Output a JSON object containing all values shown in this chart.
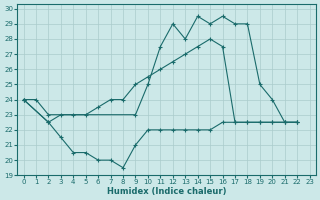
{
  "bg_color": "#cce8e8",
  "grid_color": "#aacccc",
  "line_color": "#1a6b6b",
  "xlabel": "Humidex (Indice chaleur)",
  "xlim": [
    -0.5,
    23.5
  ],
  "ylim": [
    19,
    30.3
  ],
  "yticks": [
    19,
    20,
    21,
    22,
    23,
    24,
    25,
    26,
    27,
    28,
    29,
    30
  ],
  "xticks": [
    0,
    1,
    2,
    3,
    4,
    5,
    6,
    7,
    8,
    9,
    10,
    11,
    12,
    13,
    14,
    15,
    16,
    17,
    18,
    19,
    20,
    21,
    22,
    23
  ],
  "s1_x": [
    0,
    1,
    2,
    9,
    10,
    11,
    12,
    13,
    14,
    15,
    16,
    17,
    18,
    19,
    20,
    21,
    22
  ],
  "s1_y": [
    24.0,
    24.0,
    23.0,
    23.0,
    25.0,
    27.5,
    29.0,
    28.0,
    29.5,
    29.0,
    29.5,
    29.0,
    29.0,
    25.0,
    24.0,
    22.5,
    22.5
  ],
  "s2_x": [
    0,
    2,
    3,
    4,
    5,
    6,
    7,
    8,
    9,
    10,
    11,
    12,
    13,
    14,
    15,
    16,
    17,
    18,
    19,
    20,
    21,
    22
  ],
  "s2_y": [
    24.0,
    22.5,
    23.0,
    23.0,
    23.0,
    23.5,
    24.0,
    24.0,
    25.0,
    25.5,
    26.0,
    26.5,
    27.0,
    27.5,
    28.0,
    27.5,
    22.5,
    22.5,
    22.5,
    22.5,
    22.5,
    22.5
  ],
  "s3_x": [
    0,
    2,
    3,
    4,
    5,
    6,
    7,
    8,
    9,
    10,
    11,
    12,
    13,
    14,
    15,
    16,
    17,
    18,
    19,
    20,
    21,
    22
  ],
  "s3_y": [
    24.0,
    22.5,
    21.5,
    20.5,
    20.5,
    20.0,
    20.0,
    19.5,
    21.0,
    22.0,
    22.0,
    22.0,
    22.0,
    22.0,
    22.0,
    22.5,
    22.5,
    22.5,
    22.5,
    22.5,
    22.5,
    22.5
  ]
}
